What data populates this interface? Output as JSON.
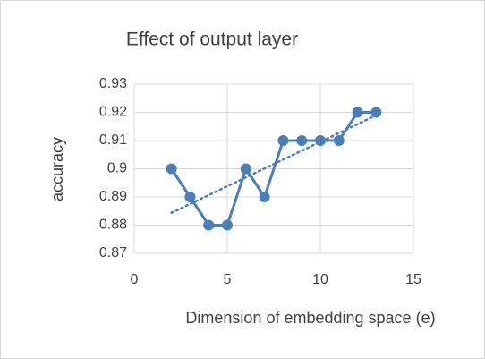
{
  "chart_data": {
    "type": "scatter",
    "title": "Effect of output layer",
    "x_label": "Dimension of embedding space (e)",
    "y_label": "accuracy",
    "series": [
      {
        "color": "#4a7ebb",
        "x": [
          2,
          3,
          4,
          5,
          6,
          7,
          8,
          9,
          10,
          11,
          12,
          13
        ],
        "values": [
          0.9,
          0.89,
          0.88,
          0.88,
          0.9,
          0.89,
          0.91,
          0.91,
          0.91,
          0.91,
          0.92,
          0.92
        ]
      }
    ],
    "lines": true,
    "markers": true,
    "trendline": "linear",
    "xlim": [
      0,
      15
    ],
    "xticks": [
      0,
      5,
      10,
      15
    ],
    "ylim": [
      0.87,
      0.93
    ],
    "yticks": [
      0.87,
      0.88,
      0.89,
      0.9,
      0.91,
      0.92,
      0.93
    ],
    "grid": true
  }
}
